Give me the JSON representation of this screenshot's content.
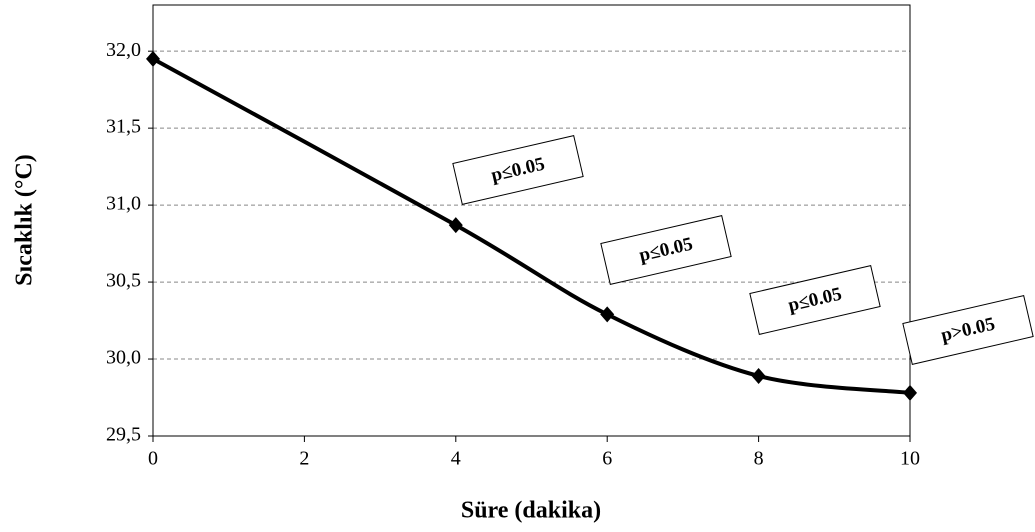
{
  "chart_data": {
    "type": "line",
    "x_label": "Süre (dakika)",
    "y_label": "Sıcaklık (°C)",
    "x": [
      0,
      4,
      6,
      8,
      10
    ],
    "series": [
      {
        "name": "Sıcaklık",
        "color": "#000000",
        "values": [
          31.95,
          30.87,
          30.29,
          29.89,
          29.78
        ]
      }
    ],
    "xlim": [
      0,
      10
    ],
    "xticks": [
      0,
      2,
      4,
      6,
      8,
      10
    ],
    "ylim": [
      29.5,
      32.3
    ],
    "yticks": [
      {
        "value": 29.5,
        "label": "29,5"
      },
      {
        "value": 30,
        "label": "30,0"
      },
      {
        "value": 30.5,
        "label": "30,5"
      },
      {
        "value": 31,
        "label": "31,0"
      },
      {
        "value": 31.5,
        "label": "31,5"
      },
      {
        "value": 32,
        "label": "32,0"
      }
    ],
    "grid": true,
    "annotations": [
      "p≤0.05",
      "p≤0.05",
      "p≤0.05",
      "p>0.05"
    ]
  }
}
